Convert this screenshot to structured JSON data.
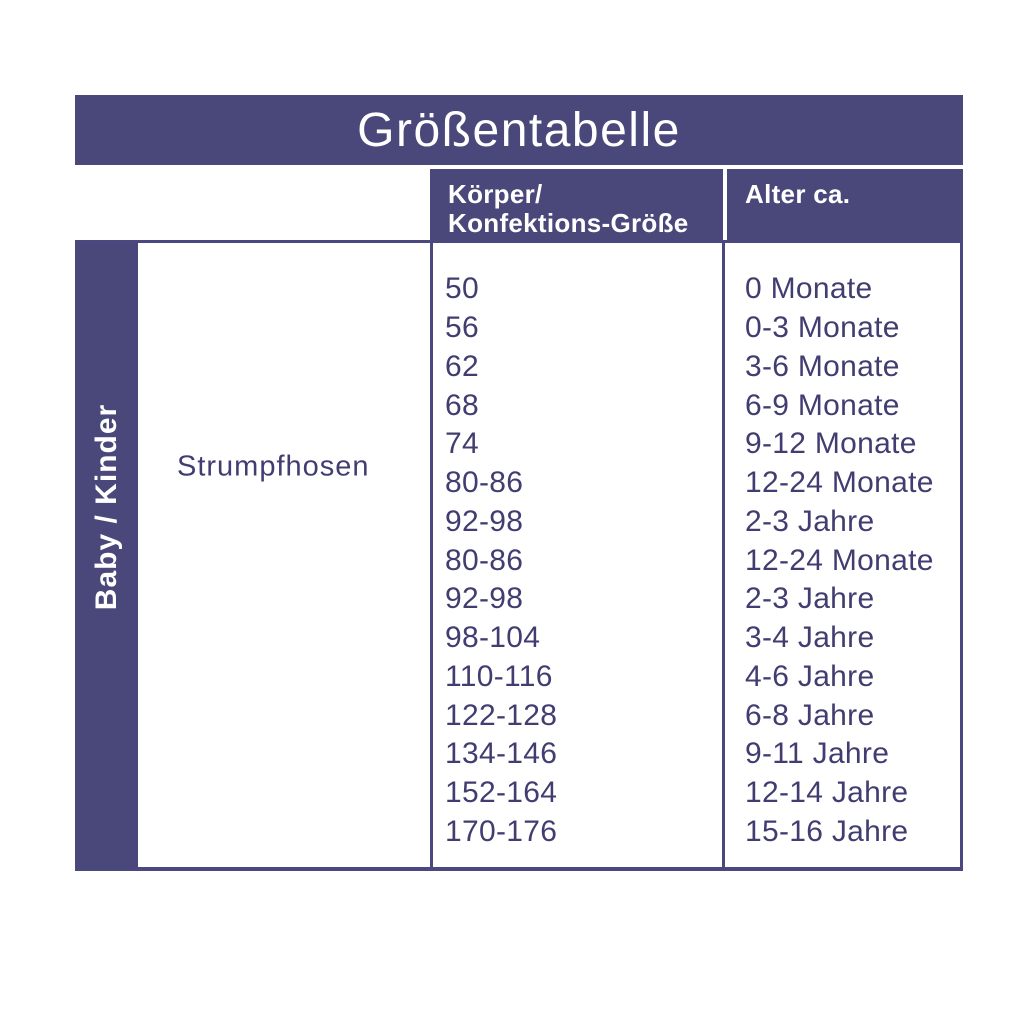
{
  "chart_data": {
    "type": "table",
    "title": "Größentabelle",
    "row_group_label": "Baby / Kinder",
    "product": "Strumpfhosen",
    "columns": [
      "Körper/Konfektions-Größe",
      "Alter ca."
    ],
    "header": {
      "size_line1": "Körper/",
      "size_line2": "Konfektions-Größe",
      "age": "Alter ca."
    },
    "rows": [
      {
        "size": "50",
        "age": "0 Monate"
      },
      {
        "size": "56",
        "age": "0-3 Monate"
      },
      {
        "size": "62",
        "age": "3-6 Monate"
      },
      {
        "size": "68",
        "age": "6-9 Monate"
      },
      {
        "size": "74",
        "age": "9-12 Monate"
      },
      {
        "size": "80-86",
        "age": "12-24 Monate"
      },
      {
        "size": "92-98",
        "age": "2-3 Jahre"
      },
      {
        "size": "80-86",
        "age": "12-24 Monate"
      },
      {
        "size": "92-98",
        "age": "2-3 Jahre"
      },
      {
        "size": "98-104",
        "age": "3-4 Jahre"
      },
      {
        "size": "110-116",
        "age": "4-6 Jahre"
      },
      {
        "size": "122-128",
        "age": "6-8 Jahre"
      },
      {
        "size": "134-146",
        "age": "9-11 Jahre"
      },
      {
        "size": "152-164",
        "age": "12-14 Jahre"
      },
      {
        "size": "170-176",
        "age": "15-16 Jahre"
      }
    ],
    "layout_hints": {
      "grid": "thin purple column dividers, purple header bars",
      "legend": "none"
    }
  },
  "colors": {
    "purple": "#4a477a",
    "text": "#413d70",
    "line": "#4b4880",
    "header_text": "#ffffff",
    "background": "#ffffff"
  }
}
